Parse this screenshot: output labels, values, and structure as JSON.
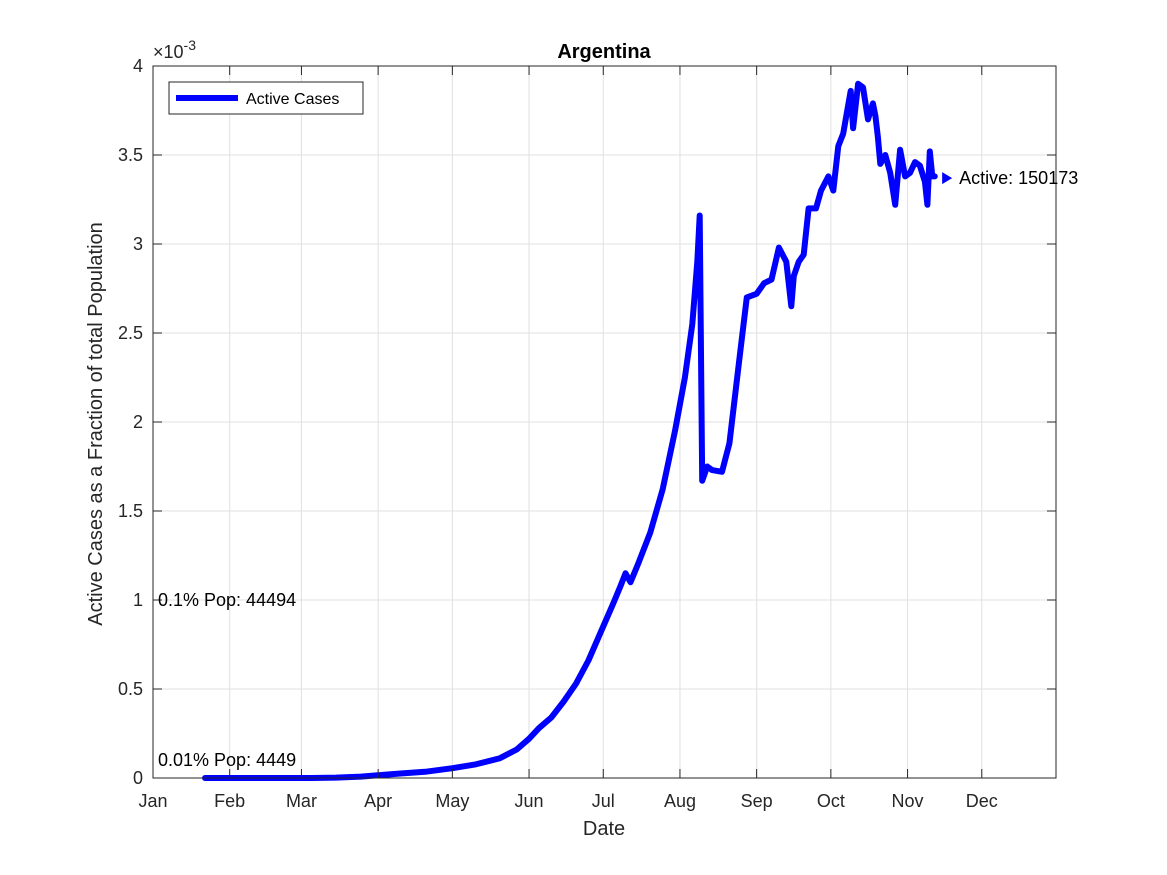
{
  "chart_data": {
    "type": "line",
    "title": "Argentina",
    "xlabel": "Date",
    "ylabel": "Active Cases as a Fraction of total Population",
    "y_exponent_label": "×10",
    "y_exponent_power": "-3",
    "ylim": [
      0,
      4
    ],
    "y_ticks": [
      0,
      0.5,
      1,
      1.5,
      2,
      2.5,
      3,
      3.5,
      4
    ],
    "y_tick_labels": [
      "0",
      "0.5",
      "1",
      "1.5",
      "2",
      "2.5",
      "3",
      "3.5",
      "4"
    ],
    "xlim": [
      "2020-01-01",
      "2020-12-31"
    ],
    "x_ticks": [
      "2020-01-01",
      "2020-02-01",
      "2020-03-01",
      "2020-04-01",
      "2020-05-01",
      "2020-06-01",
      "2020-07-01",
      "2020-08-01",
      "2020-09-01",
      "2020-10-01",
      "2020-11-01",
      "2020-12-01"
    ],
    "x_tick_labels": [
      "Jan",
      "Feb",
      "Mar",
      "Apr",
      "May",
      "Jun",
      "Jul",
      "Aug",
      "Sep",
      "Oct",
      "Nov",
      "Dec"
    ],
    "grid": true,
    "legend": {
      "position": "top-left",
      "entries": [
        "Active Cases"
      ]
    },
    "series": [
      {
        "name": "Active Cases",
        "color": "#0000ff",
        "x": [
          "2020-01-22",
          "2020-02-15",
          "2020-03-05",
          "2020-03-15",
          "2020-03-25",
          "2020-04-01",
          "2020-04-10",
          "2020-04-20",
          "2020-05-01",
          "2020-05-10",
          "2020-05-20",
          "2020-05-27",
          "2020-06-01",
          "2020-06-05",
          "2020-06-10",
          "2020-06-15",
          "2020-06-20",
          "2020-06-25",
          "2020-06-30",
          "2020-07-05",
          "2020-07-08",
          "2020-07-10",
          "2020-07-12",
          "2020-07-15",
          "2020-07-20",
          "2020-07-25",
          "2020-07-30",
          "2020-08-03",
          "2020-08-06",
          "2020-08-08",
          "2020-08-09",
          "2020-08-10",
          "2020-08-12",
          "2020-08-14",
          "2020-08-18",
          "2020-08-21",
          "2020-08-25",
          "2020-08-28",
          "2020-09-01",
          "2020-09-04",
          "2020-09-07",
          "2020-09-10",
          "2020-09-13",
          "2020-09-15",
          "2020-09-16",
          "2020-09-18",
          "2020-09-20",
          "2020-09-22",
          "2020-09-24",
          "2020-09-25",
          "2020-09-27",
          "2020-09-30",
          "2020-10-02",
          "2020-10-04",
          "2020-10-06",
          "2020-10-09",
          "2020-10-10",
          "2020-10-12",
          "2020-10-14",
          "2020-10-16",
          "2020-10-18",
          "2020-10-19",
          "2020-10-20",
          "2020-10-21",
          "2020-10-23",
          "2020-10-25",
          "2020-10-27",
          "2020-10-29",
          "2020-10-31",
          "2020-11-02",
          "2020-11-04",
          "2020-11-06",
          "2020-11-08",
          "2020-11-09",
          "2020-11-10",
          "2020-11-11",
          "2020-11-12"
        ],
        "y": [
          0,
          0,
          0,
          0.002,
          0.008,
          0.015,
          0.025,
          0.035,
          0.055,
          0.075,
          0.11,
          0.16,
          0.22,
          0.28,
          0.34,
          0.43,
          0.53,
          0.66,
          0.82,
          0.98,
          1.08,
          1.15,
          1.1,
          1.2,
          1.38,
          1.62,
          1.95,
          2.25,
          2.55,
          2.9,
          3.16,
          1.67,
          1.75,
          1.73,
          1.72,
          1.88,
          2.35,
          2.7,
          2.72,
          2.78,
          2.8,
          2.98,
          2.9,
          2.65,
          2.82,
          2.9,
          2.94,
          3.2,
          3.2,
          3.2,
          3.3,
          3.38,
          3.3,
          3.55,
          3.62,
          3.86,
          3.65,
          3.9,
          3.88,
          3.7,
          3.79,
          3.72,
          3.6,
          3.45,
          3.5,
          3.4,
          3.22,
          3.53,
          3.38,
          3.4,
          3.46,
          3.44,
          3.35,
          3.22,
          3.52,
          3.38,
          3.38
        ]
      }
    ],
    "annotations": [
      {
        "text": "0.01% Pop: 4449",
        "x": "2020-01-01",
        "y": 0.1
      },
      {
        "text": "0.1% Pop: 44494",
        "x": "2020-01-01",
        "y": 1.0
      },
      {
        "text": "Active: 150173",
        "x": "2020-11-17",
        "y": 3.37
      }
    ]
  }
}
